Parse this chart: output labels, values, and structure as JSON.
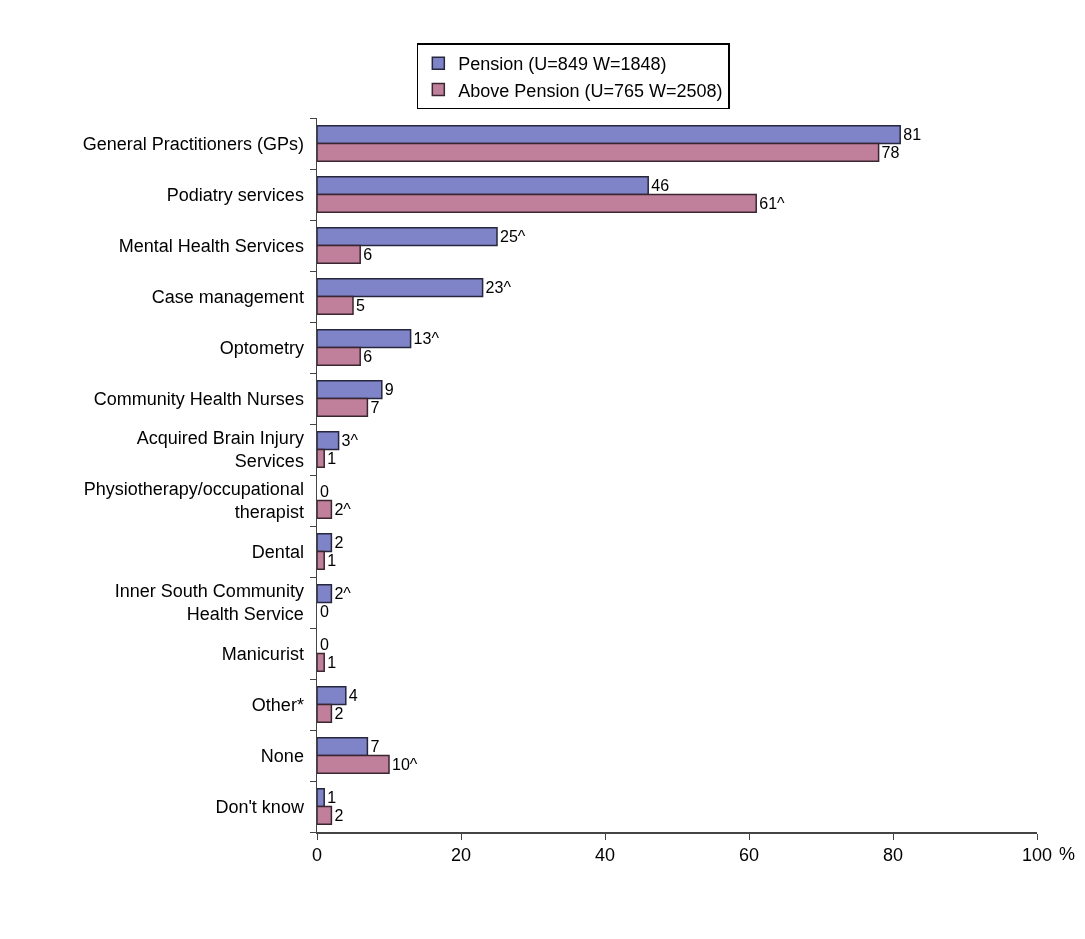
{
  "chart_data": {
    "type": "bar",
    "orientation": "horizontal",
    "categories": [
      "General Practitioners (GPs)",
      "Podiatry services",
      "Mental Health Services",
      "Case management",
      "Optometry",
      "Community Health Nurses",
      "Acquired Brain Injury Services",
      "Physiotherapy/occupational therapist",
      "Dental",
      "Inner South Community Health Service",
      "Manicurist",
      "Other*",
      "None",
      "Don't know"
    ],
    "series": [
      {
        "name": "Pension (U=849 W=1848)",
        "color": "#7f83c8",
        "values": [
          81,
          46,
          25,
          23,
          13,
          9,
          3,
          0,
          2,
          2,
          0,
          4,
          7,
          1
        ],
        "value_labels": [
          "81",
          "46",
          "25^",
          "23^",
          "13^",
          "9",
          "3^",
          "0",
          "2",
          "2^",
          "0",
          "4",
          "7",
          "1"
        ]
      },
      {
        "name": "Above Pension (U=765 W=2508)",
        "color": "#c0809c",
        "values": [
          78,
          61,
          6,
          5,
          6,
          7,
          1,
          2,
          1,
          0,
          1,
          2,
          10,
          2
        ],
        "value_labels": [
          "78",
          "61^",
          "6",
          "5",
          "6",
          "7",
          "1",
          "2^",
          "1",
          "0",
          "1",
          "2",
          "10^",
          "2"
        ]
      }
    ],
    "xlim": [
      0,
      100
    ],
    "xticks": [
      0,
      20,
      40,
      60,
      80,
      100
    ],
    "xlabel": "%",
    "legend": "top"
  }
}
